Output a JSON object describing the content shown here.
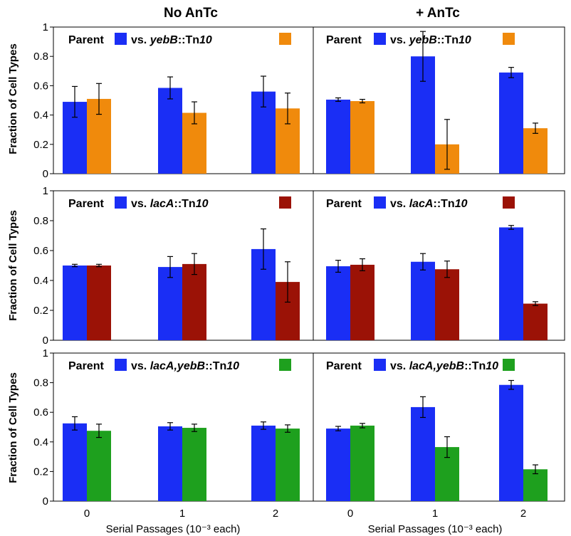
{
  "figure": {
    "columns": [
      "No AnTc",
      "+ AnTc"
    ],
    "ylabel": "Fraction of Cell Types",
    "xlabel": "Serial Passages (10⁻³ each)",
    "yticks": [
      "0",
      "0.2",
      "0.4",
      "0.6",
      "0.8",
      "1"
    ],
    "categories": [
      "0",
      "1",
      "2"
    ]
  },
  "chart_data": [
    {
      "type": "bar",
      "title": "No AnTc",
      "ylabel": "Fraction of Cell Types",
      "xlabel": "",
      "ylim": [
        0,
        1
      ],
      "categories": [
        "0",
        "1",
        "2"
      ],
      "legend": {
        "parent": "Parent",
        "prefix": "vs.",
        "mutant": "yebB::Tn10"
      },
      "series": [
        {
          "name": "Parent",
          "color": "#1a2ef5",
          "values": [
            0.49,
            0.585,
            0.56
          ],
          "errors": [
            0.105,
            0.075,
            0.105
          ]
        },
        {
          "name": "vs. yebB::Tn10",
          "color": "#f08a0c",
          "values": [
            0.51,
            0.415,
            0.445
          ],
          "errors": [
            0.105,
            0.075,
            0.105
          ]
        }
      ]
    },
    {
      "type": "bar",
      "title": "+ AnTc",
      "ylabel": "",
      "xlabel": "",
      "ylim": [
        0,
        1
      ],
      "categories": [
        "0",
        "1",
        "2"
      ],
      "legend": {
        "parent": "Parent",
        "prefix": "vs.",
        "mutant": "yebB::Tn10"
      },
      "series": [
        {
          "name": "Parent",
          "color": "#1a2ef5",
          "values": [
            0.505,
            0.8,
            0.69
          ],
          "errors": [
            0.012,
            0.17,
            0.035
          ]
        },
        {
          "name": "vs. yebB::Tn10",
          "color": "#f08a0c",
          "values": [
            0.495,
            0.2,
            0.31
          ],
          "errors": [
            0.012,
            0.17,
            0.035
          ]
        }
      ]
    },
    {
      "type": "bar",
      "title": "",
      "ylabel": "Fraction of Cell Types",
      "xlabel": "",
      "ylim": [
        0,
        1
      ],
      "categories": [
        "0",
        "1",
        "2"
      ],
      "legend": {
        "parent": "Parent",
        "prefix": "vs.",
        "mutant": "lacA::Tn10"
      },
      "series": [
        {
          "name": "Parent",
          "color": "#1a2ef5",
          "values": [
            0.5,
            0.49,
            0.61
          ],
          "errors": [
            0.008,
            0.07,
            0.135
          ]
        },
        {
          "name": "vs. lacA::Tn10",
          "color": "#9b1206",
          "values": [
            0.5,
            0.51,
            0.39
          ],
          "errors": [
            0.008,
            0.07,
            0.135
          ]
        }
      ]
    },
    {
      "type": "bar",
      "title": "",
      "ylabel": "",
      "xlabel": "",
      "ylim": [
        0,
        1
      ],
      "categories": [
        "0",
        "1",
        "2"
      ],
      "legend": {
        "parent": "Parent",
        "prefix": "vs.",
        "mutant": "lacA::Tn10"
      },
      "series": [
        {
          "name": "Parent",
          "color": "#1a2ef5",
          "values": [
            0.495,
            0.525,
            0.755
          ],
          "errors": [
            0.04,
            0.055,
            0.013
          ]
        },
        {
          "name": "vs. lacA::Tn10",
          "color": "#9b1206",
          "values": [
            0.505,
            0.475,
            0.245
          ],
          "errors": [
            0.04,
            0.055,
            0.013
          ]
        }
      ]
    },
    {
      "type": "bar",
      "title": "",
      "ylabel": "Fraction of Cell Types",
      "xlabel": "Serial Passages (10⁻³ each)",
      "ylim": [
        0,
        1
      ],
      "categories": [
        "0",
        "1",
        "2"
      ],
      "legend": {
        "parent": "Parent",
        "prefix": "vs.",
        "mutant": "lacA,yebB::Tn10"
      },
      "series": [
        {
          "name": "Parent",
          "color": "#1a2ef5",
          "values": [
            0.525,
            0.505,
            0.51
          ],
          "errors": [
            0.045,
            0.025,
            0.025
          ]
        },
        {
          "name": "vs. lacA,yebB::Tn10",
          "color": "#1ea01e",
          "values": [
            0.475,
            0.495,
            0.49
          ],
          "errors": [
            0.045,
            0.025,
            0.025
          ]
        }
      ]
    },
    {
      "type": "bar",
      "title": "",
      "ylabel": "",
      "xlabel": "Serial Passages (10⁻³ each)",
      "ylim": [
        0,
        1
      ],
      "categories": [
        "0",
        "1",
        "2"
      ],
      "legend": {
        "parent": "Parent",
        "prefix": "vs.",
        "mutant": "lacA,yebB::Tn10"
      },
      "series": [
        {
          "name": "Parent",
          "color": "#1a2ef5",
          "values": [
            0.49,
            0.635,
            0.785
          ],
          "errors": [
            0.015,
            0.07,
            0.03
          ]
        },
        {
          "name": "vs. lacA,yebB::Tn10",
          "color": "#1ea01e",
          "values": [
            0.51,
            0.365,
            0.215
          ],
          "errors": [
            0.015,
            0.07,
            0.03
          ]
        }
      ]
    }
  ]
}
